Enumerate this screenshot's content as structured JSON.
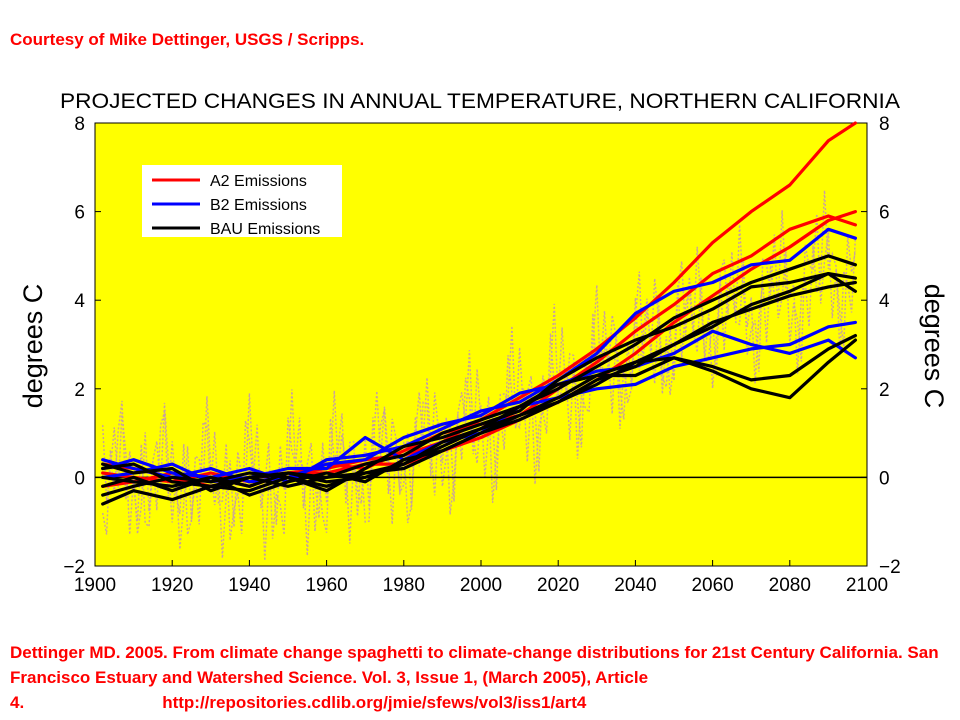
{
  "courtesy": "Courtesy of Mike Dettinger, USGS / Scripps.",
  "citation": {
    "text": "Dettinger MD. 2005. From climate change spaghetti to climate-change distributions for 21st Century California. San Francisco Estuary and Watershed Science. Vol. 3, Issue 1, (March 2005), Article 4.",
    "url": "http://repositories.cdlib.org/jmie/sfews/vol3/iss1/art4"
  },
  "colors": {
    "text_red": "#ff0000",
    "plot_background": "#ffff00",
    "a2": "#ff0000",
    "b2": "#0000ff",
    "bau": "#000000",
    "annual_dots": "#c8a0a0"
  },
  "chart_data": {
    "type": "line",
    "title": "PROJECTED CHANGES IN ANNUAL TEMPERATURE, NORTHERN CALIFORNIA",
    "xlabel": "",
    "ylabel": "degrees C",
    "ylabel_right": "degrees C",
    "xlim": [
      1900,
      2100
    ],
    "ylim": [
      -2,
      8
    ],
    "xticks": [
      "1900",
      "1920",
      "1940",
      "1960",
      "1980",
      "2000",
      "2020",
      "2040",
      "2060",
      "2080",
      "2100"
    ],
    "yticks": [
      "−2",
      "0",
      "2",
      "4",
      "6",
      "8"
    ],
    "reference_line": 0,
    "grid": false,
    "legend_position": "top-left",
    "legend": [
      {
        "label": "A2 Emissions",
        "color": "#ff0000"
      },
      {
        "label": "B2 Emissions",
        "color": "#0000ff"
      },
      {
        "label": "BAU Emissions",
        "color": "#000000"
      }
    ],
    "x": [
      1902,
      1910,
      1920,
      1930,
      1940,
      1950,
      1960,
      1970,
      1980,
      1990,
      2000,
      2010,
      2020,
      2030,
      2040,
      2050,
      2060,
      2070,
      2080,
      2090,
      2097
    ],
    "series": [
      {
        "legend": "A2 Emissions",
        "color": "#ff0000",
        "values": [
          0.3,
          0.2,
          0.0,
          -0.2,
          0.0,
          0.1,
          0.2,
          0.4,
          0.5,
          0.8,
          1.3,
          1.8,
          2.3,
          2.9,
          3.6,
          4.4,
          5.3,
          6.0,
          6.6,
          7.6,
          8.0
        ]
      },
      {
        "legend": "A2 Emissions",
        "color": "#ff0000",
        "values": [
          0.1,
          0.0,
          -0.1,
          0.1,
          -0.1,
          0.0,
          0.3,
          0.2,
          0.6,
          1.0,
          1.2,
          1.4,
          2.0,
          2.6,
          3.3,
          3.9,
          4.6,
          5.0,
          5.6,
          5.9,
          5.7
        ]
      },
      {
        "legend": "A2 Emissions",
        "color": "#ff0000",
        "values": [
          -0.2,
          -0.1,
          0.1,
          0.0,
          -0.2,
          0.1,
          0.1,
          0.3,
          0.3,
          0.6,
          0.9,
          1.3,
          1.7,
          2.2,
          2.8,
          3.5,
          4.1,
          4.7,
          5.2,
          5.8,
          6.0
        ]
      },
      {
        "legend": "B2 Emissions",
        "color": "#0000ff",
        "values": [
          0.2,
          0.4,
          0.1,
          0.0,
          0.2,
          -0.1,
          0.4,
          0.5,
          0.7,
          1.1,
          1.5,
          1.7,
          2.2,
          2.8,
          3.7,
          4.2,
          4.4,
          4.8,
          4.9,
          5.6,
          5.4
        ]
      },
      {
        "legend": "B2 Emissions",
        "color": "#0000ff",
        "values": [
          0.0,
          0.1,
          0.3,
          -0.1,
          0.0,
          0.2,
          0.2,
          0.9,
          0.4,
          0.8,
          1.0,
          1.6,
          1.8,
          2.0,
          2.1,
          2.5,
          2.7,
          2.9,
          3.0,
          3.4,
          3.5
        ]
      },
      {
        "legend": "B2 Emissions",
        "color": "#0000ff",
        "values": [
          0.4,
          0.2,
          0.0,
          0.2,
          -0.1,
          0.0,
          0.3,
          0.4,
          0.9,
          1.2,
          1.4,
          1.9,
          2.1,
          2.4,
          2.5,
          2.8,
          3.3,
          3.0,
          2.8,
          3.1,
          2.7
        ]
      },
      {
        "legend": "BAU Emissions",
        "color": "#000000",
        "values": [
          -0.6,
          -0.3,
          -0.5,
          -0.2,
          -0.3,
          0.0,
          -0.2,
          0.1,
          0.3,
          0.8,
          1.1,
          1.6,
          2.0,
          2.5,
          3.0,
          3.6,
          4.0,
          4.4,
          4.7,
          5.0,
          4.8
        ]
      },
      {
        "legend": "BAU Emissions",
        "color": "#000000",
        "values": [
          -0.2,
          0.0,
          -0.3,
          0.0,
          -0.4,
          -0.1,
          0.1,
          -0.1,
          0.4,
          0.6,
          1.0,
          1.4,
          1.7,
          2.2,
          2.5,
          3.0,
          3.4,
          3.9,
          4.2,
          4.6,
          4.5
        ]
      },
      {
        "legend": "BAU Emissions",
        "color": "#000000",
        "values": [
          0.3,
          0.1,
          0.2,
          -0.3,
          0.0,
          -0.2,
          0.0,
          0.3,
          0.5,
          1.0,
          1.3,
          1.6,
          2.1,
          2.3,
          2.6,
          2.7,
          2.5,
          2.2,
          2.3,
          2.9,
          3.2
        ]
      },
      {
        "legend": "BAU Emissions",
        "color": "#000000",
        "values": [
          -0.4,
          -0.2,
          0.0,
          -0.1,
          0.1,
          0.0,
          -0.3,
          0.2,
          0.7,
          0.9,
          1.2,
          1.5,
          2.2,
          2.7,
          3.1,
          3.4,
          3.8,
          4.3,
          4.4,
          4.6,
          4.2
        ]
      },
      {
        "legend": "BAU Emissions",
        "color": "#000000",
        "values": [
          0.0,
          -0.1,
          -0.2,
          0.0,
          -0.2,
          0.1,
          0.0,
          0.1,
          0.2,
          0.6,
          1.0,
          1.3,
          1.7,
          2.1,
          2.6,
          3.0,
          3.5,
          3.8,
          4.1,
          4.3,
          4.4
        ]
      },
      {
        "legend": "BAU Emissions",
        "color": "#000000",
        "values": [
          0.2,
          0.3,
          -0.1,
          -0.2,
          0.0,
          0.1,
          -0.1,
          0.0,
          0.3,
          0.7,
          1.1,
          1.4,
          1.8,
          2.3,
          2.3,
          2.7,
          2.4,
          2.0,
          1.8,
          2.6,
          3.1
        ]
      }
    ]
  }
}
